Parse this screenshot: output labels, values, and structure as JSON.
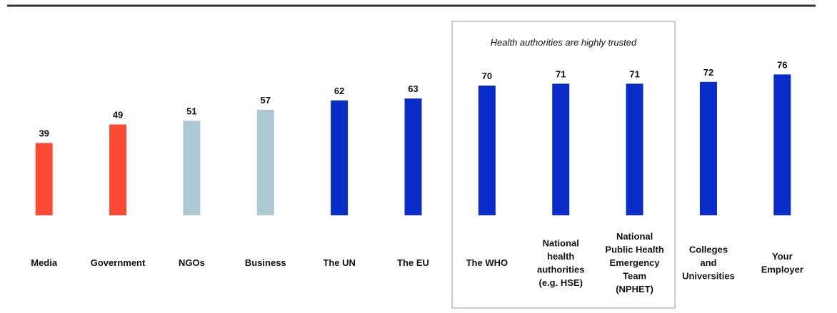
{
  "chart_data": {
    "type": "bar",
    "annotation": "Health authorities are highly trusted",
    "categories": [
      "Media",
      "Government",
      "NGOs",
      "Business",
      "The UN",
      "The EU",
      "The WHO",
      "National\nhealth\nauthorities\n(e.g. HSE)",
      "National\nPublic Health\nEmergency\nTeam\n(NPHET)",
      "Colleges\nand\nUniversities",
      "Your\nEmployer"
    ],
    "values": [
      39,
      49,
      51,
      57,
      62,
      63,
      70,
      71,
      71,
      72,
      76
    ],
    "colors": [
      "#fd4a34",
      "#fd4a34",
      "#adc9d4",
      "#adc9d4",
      "#0a2cc9",
      "#0a2cc9",
      "#0a2cc9",
      "#0a2cc9",
      "#0a2cc9",
      "#0a2cc9",
      "#0a2cc9"
    ],
    "ylim": [
      0,
      100
    ]
  }
}
